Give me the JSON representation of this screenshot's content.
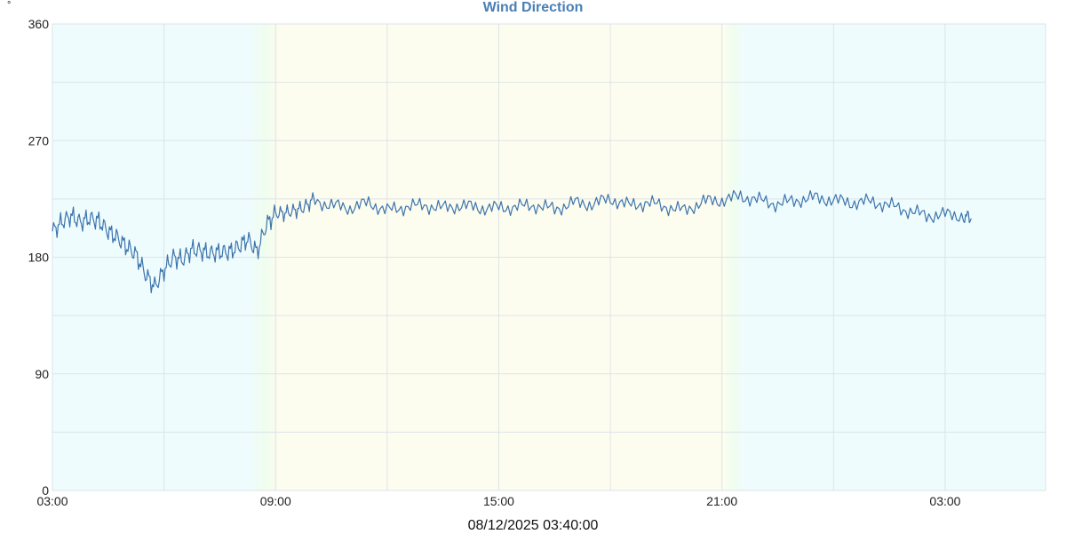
{
  "title": "Wind Direction",
  "unit": "°",
  "timestamp": "08/12/2025 03:40:00",
  "colors": {
    "line": "#3d74ad",
    "night": "#effcfd",
    "day": "#fdfdef",
    "twilight": "#effdef",
    "grid": "#dde3e8",
    "title": "#4a7fb5"
  },
  "chart_data": {
    "type": "line",
    "title": "Wind Direction",
    "ylabel": "°",
    "ylim": [
      0,
      360
    ],
    "yticks": [
      0,
      90,
      180,
      270,
      360
    ],
    "xlim_hours": [
      0,
      26.7
    ],
    "xtick_labels": [
      "03:00",
      "09:00",
      "15:00",
      "21:00",
      "03:00"
    ],
    "xtick_hours": [
      0,
      6,
      12,
      18,
      24
    ],
    "grid": true,
    "shading": {
      "sunrise_hours": [
        5.3,
        6.1
      ],
      "sunset_hours": [
        18.0,
        18.6
      ]
    },
    "series": [
      {
        "x_hours": [
          0,
          0.25,
          0.5,
          0.75,
          1,
          1.25,
          1.5,
          1.75,
          2,
          2.25,
          2.5,
          2.75,
          3,
          3.25,
          3.5,
          3.75,
          4,
          4.25,
          4.5,
          4.75,
          5,
          5.25,
          5.5,
          5.75,
          6,
          6.25,
          6.5,
          6.75,
          7,
          7.5,
          8,
          8.5,
          9,
          9.5,
          10,
          10.5,
          11,
          11.5,
          12,
          12.5,
          13,
          13.5,
          14,
          14.5,
          15,
          15.5,
          16,
          16.5,
          17,
          17.5,
          18,
          18.5,
          19,
          19.5,
          20,
          20.5,
          21,
          21.5,
          22,
          22.5,
          23,
          23.5,
          24,
          24.5,
          24.7
        ],
        "values": [
          200,
          207,
          212,
          207,
          210,
          208,
          200,
          195,
          188,
          182,
          167,
          157,
          170,
          180,
          178,
          186,
          185,
          183,
          184,
          184,
          188,
          194,
          184,
          205,
          214,
          214,
          216,
          218,
          224,
          220,
          218,
          222,
          216,
          219,
          220,
          218,
          220,
          218,
          218,
          219,
          220,
          217,
          222,
          221,
          225,
          220,
          222,
          219,
          216,
          223,
          224,
          227,
          224,
          221,
          224,
          226,
          224,
          222,
          223,
          220,
          216,
          212,
          213,
          212,
          210
        ]
      }
    ]
  }
}
